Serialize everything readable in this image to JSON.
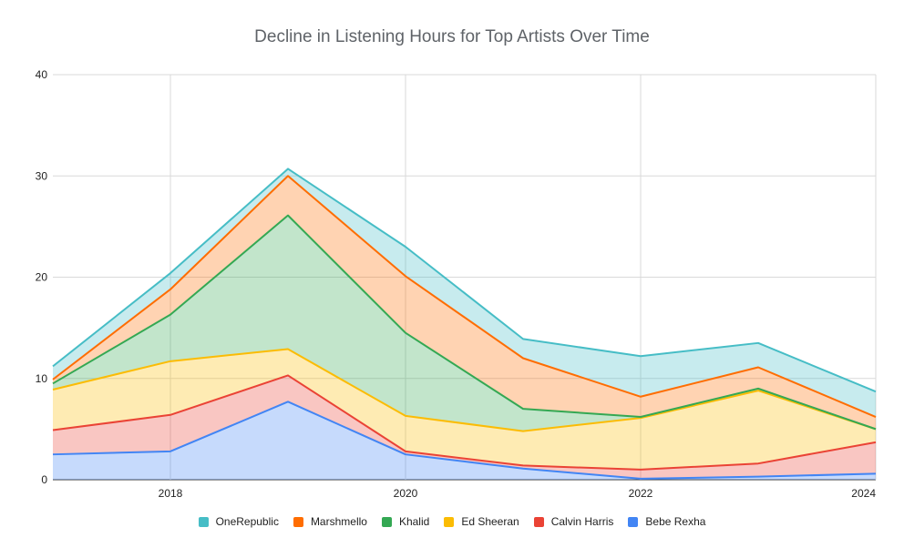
{
  "chart_data": {
    "type": "area",
    "title": "Decline in Listening Hours for Top Artists Over Time",
    "x": [
      2017,
      2018,
      2019,
      2020,
      2021,
      2022,
      2023,
      2024
    ],
    "x_ticks": [
      "2018",
      "2020",
      "2022",
      "2024"
    ],
    "y_ticks": [
      "0",
      "10",
      "20",
      "30",
      "40"
    ],
    "ylim": [
      0,
      40
    ],
    "stacked": true,
    "grid": true,
    "legend_position": "bottom",
    "series": [
      {
        "name": "Bebe Rexha",
        "color": "#4285f4",
        "values": [
          2.5,
          2.8,
          7.7,
          2.5,
          1.1,
          0.1,
          0.3,
          0.6
        ]
      },
      {
        "name": "Calvin Harris",
        "color": "#ea4335",
        "values": [
          2.4,
          3.6,
          2.6,
          0.3,
          0.3,
          0.9,
          1.3,
          3.1
        ]
      },
      {
        "name": "Ed Sheeran",
        "color": "#fbbc04",
        "values": [
          4.0,
          5.3,
          2.6,
          3.5,
          3.4,
          5.1,
          7.2,
          1.3
        ]
      },
      {
        "name": "Khalid",
        "color": "#34a853",
        "values": [
          0.6,
          4.6,
          13.2,
          8.2,
          2.2,
          0.1,
          0.2,
          0.0
        ]
      },
      {
        "name": "Marshmello",
        "color": "#ff6d01",
        "values": [
          0.4,
          2.5,
          3.9,
          5.6,
          5.0,
          2.0,
          2.1,
          1.2
        ]
      },
      {
        "name": "OneRepublic",
        "color": "#46bdc6",
        "values": [
          1.3,
          1.6,
          0.7,
          2.9,
          1.9,
          4.0,
          2.4,
          2.5
        ]
      }
    ],
    "legend_order": [
      "OneRepublic",
      "Marshmello",
      "Khalid",
      "Ed Sheeran",
      "Calvin Harris",
      "Bebe Rexha"
    ]
  }
}
